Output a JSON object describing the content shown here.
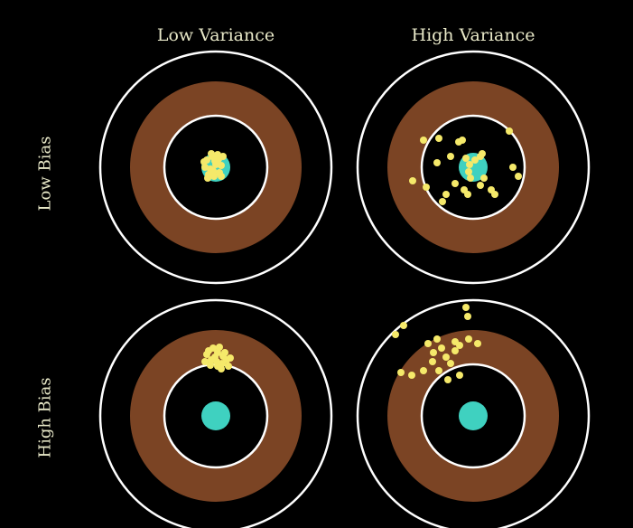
{
  "columns": [
    "Low Variance",
    "High Variance"
  ],
  "rows": [
    "Low Bias",
    "High Bias"
  ],
  "colors": {
    "background": "#000000",
    "ring": "#ffffff",
    "band": "#7b4424",
    "bullseye": "#3fd1c0",
    "shot": "#f5e96a",
    "label": "#e8e8c8"
  },
  "panels": [
    {
      "id": "low-bias-low-variance",
      "bias": "low",
      "variance": "low"
    },
    {
      "id": "low-bias-high-variance",
      "bias": "low",
      "variance": "high"
    },
    {
      "id": "high-bias-low-variance",
      "bias": "high",
      "variance": "low"
    },
    {
      "id": "high-bias-high-variance",
      "bias": "high",
      "variance": "high"
    }
  ]
}
